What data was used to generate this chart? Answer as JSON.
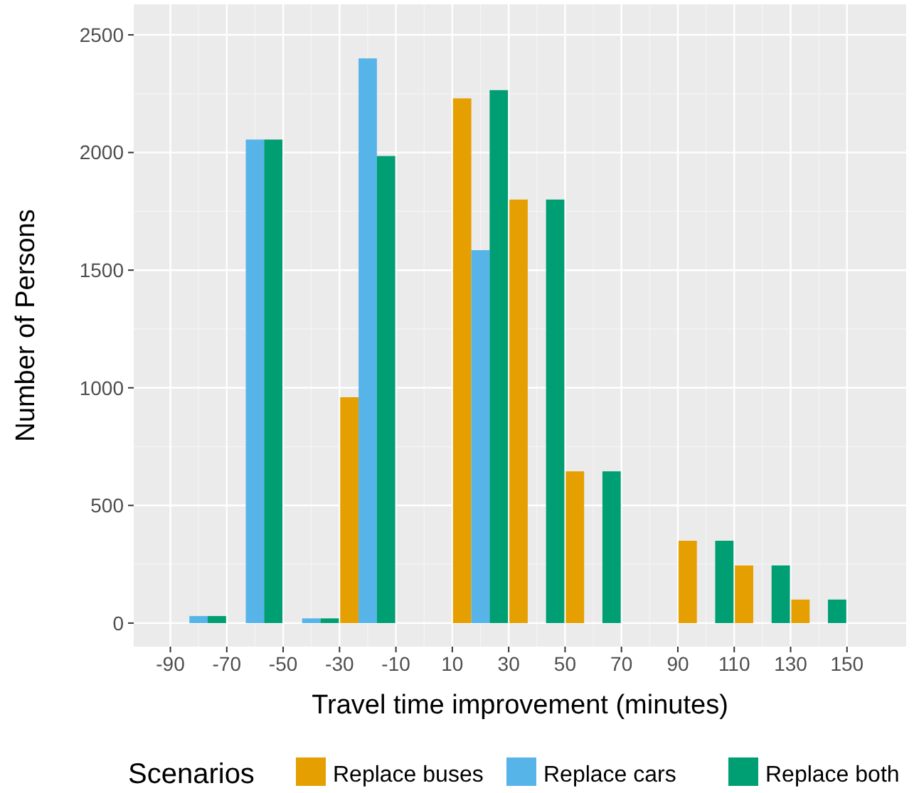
{
  "chart_data": {
    "type": "bar",
    "xlabel": "Travel time improvement (minutes)",
    "ylabel": "Number of Persons",
    "legend_title": "Scenarios",
    "x": [
      -80,
      -60,
      -40,
      -20,
      20,
      40,
      60,
      100,
      120,
      140
    ],
    "series": [
      {
        "name": "Replace buses",
        "color": "#e69f00",
        "values": [
          null,
          null,
          null,
          960,
          2230,
          1800,
          645,
          350,
          245,
          100
        ]
      },
      {
        "name": "Replace cars",
        "color": "#56b4e9",
        "values": [
          30,
          2055,
          20,
          2400,
          1585,
          null,
          null,
          null,
          null,
          null
        ]
      },
      {
        "name": "Replace both",
        "color": "#009e73",
        "values": [
          30,
          2055,
          20,
          1985,
          2265,
          1800,
          645,
          350,
          245,
          100
        ]
      }
    ],
    "xlim": [
      -103,
      171
    ],
    "xticks": [
      -90,
      -70,
      -50,
      -30,
      -10,
      10,
      30,
      50,
      70,
      90,
      110,
      130,
      150
    ],
    "ylim": [
      -100,
      2630
    ],
    "yticks": [
      0,
      500,
      1000,
      1500,
      2000,
      2500
    ],
    "grid": true,
    "legend": "bottom"
  }
}
